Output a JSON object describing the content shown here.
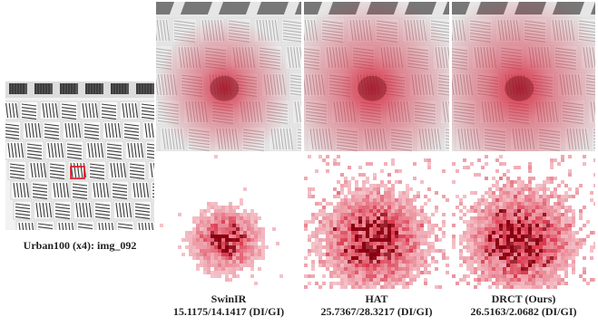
{
  "source_caption": "Urban100 (x4): img_092",
  "methods": [
    {
      "name": "SwinIR",
      "metrics": "15.1175/14.1417 (DI/GI)",
      "lam_scale": 0.55,
      "heat_spread": 0.35
    },
    {
      "name": "HAT",
      "metrics": "25.7367/28.3217 (DI/GI)",
      "lam_scale": 0.85,
      "heat_spread": 0.85
    },
    {
      "name": "DRCT (Ours)",
      "metrics": "26.5163/2.0682 (DI/GI)",
      "lam_scale": 0.9,
      "heat_spread": 0.9
    }
  ],
  "colors": {
    "heat": "#d4102a",
    "box": "#e0101a",
    "stripe": "#3c3c3c"
  }
}
